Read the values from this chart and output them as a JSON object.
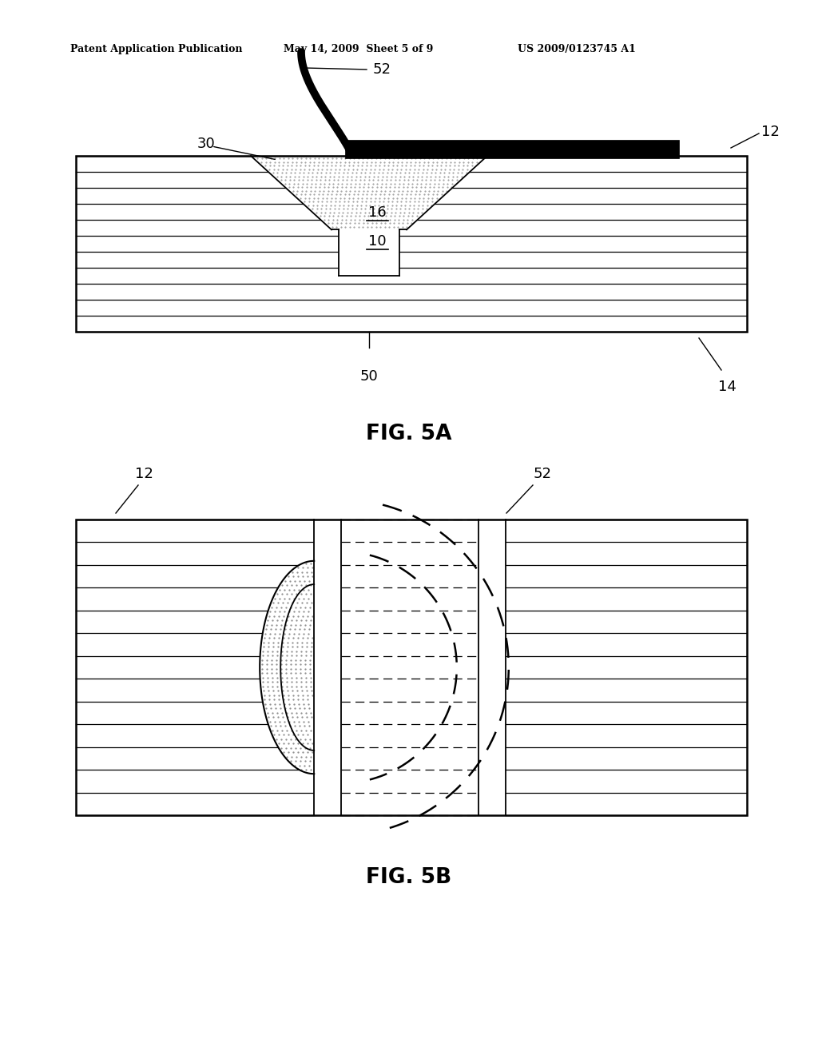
{
  "header_left": "Patent Application Publication",
  "header_mid": "May 14, 2009  Sheet 5 of 9",
  "header_right": "US 2009/0123745 A1",
  "fig5a_caption": "FIG. 5A",
  "fig5b_caption": "FIG. 5B",
  "background": "#ffffff",
  "line_color": "#000000"
}
